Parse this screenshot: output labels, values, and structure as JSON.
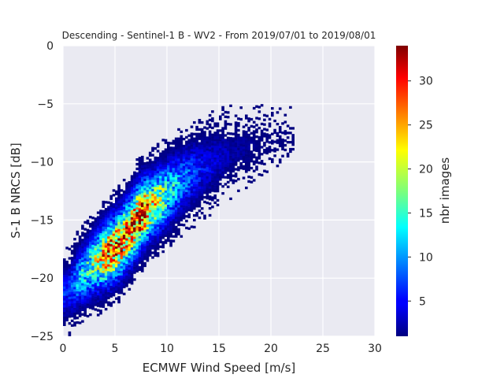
{
  "chart_data": {
    "type": "heatmap",
    "title": "Descending - Sentinel-1 B - WV2 - From 2019/07/01 to 2019/08/01",
    "xlabel": "ECMWF Wind Speed [m/s]",
    "ylabel": "S-1 B NRCS [dB]",
    "xlim": [
      0,
      30
    ],
    "ylim": [
      -25,
      0
    ],
    "x_ticks": [
      "0",
      "5",
      "10",
      "15",
      "20",
      "25",
      "30"
    ],
    "y_ticks": [
      "0",
      "−5",
      "−10",
      "−15",
      "−20",
      "−25"
    ],
    "grid": true,
    "colorbar": {
      "label": "nbr images",
      "range": [
        1,
        34
      ],
      "ticks": [
        "5",
        "10",
        "15",
        "20",
        "25",
        "30"
      ],
      "colormap": "jet"
    },
    "density_ridge": [
      {
        "x": 0.5,
        "y": -21.2,
        "spread": 1.3,
        "peak": 6
      },
      {
        "x": 1.5,
        "y": -20.0,
        "spread": 1.4,
        "peak": 11
      },
      {
        "x": 2.5,
        "y": -19.2,
        "spread": 1.5,
        "peak": 15
      },
      {
        "x": 3.5,
        "y": -18.4,
        "spread": 1.6,
        "peak": 20
      },
      {
        "x": 4.5,
        "y": -17.7,
        "spread": 1.6,
        "peak": 28
      },
      {
        "x": 5.5,
        "y": -17.0,
        "spread": 1.7,
        "peak": 27
      },
      {
        "x": 6.5,
        "y": -15.8,
        "spread": 1.7,
        "peak": 25
      },
      {
        "x": 7.5,
        "y": -14.5,
        "spread": 1.7,
        "peak": 30
      },
      {
        "x": 8.5,
        "y": -13.8,
        "spread": 1.6,
        "peak": 22
      },
      {
        "x": 9.5,
        "y": -13.1,
        "spread": 1.6,
        "peak": 18
      },
      {
        "x": 10.5,
        "y": -12.4,
        "spread": 1.6,
        "peak": 13
      },
      {
        "x": 11.5,
        "y": -11.6,
        "spread": 1.6,
        "peak": 9
      },
      {
        "x": 12.5,
        "y": -11.0,
        "spread": 1.6,
        "peak": 7
      },
      {
        "x": 13.5,
        "y": -10.5,
        "spread": 1.5,
        "peak": 5
      },
      {
        "x": 14.5,
        "y": -10.0,
        "spread": 1.5,
        "peak": 4
      },
      {
        "x": 15.5,
        "y": -9.5,
        "spread": 1.4,
        "peak": 3
      },
      {
        "x": 16.5,
        "y": -9.1,
        "spread": 1.3,
        "peak": 2
      },
      {
        "x": 17.5,
        "y": -8.8,
        "spread": 1.2,
        "peak": 2
      },
      {
        "x": 18.5,
        "y": -8.5,
        "spread": 1.1,
        "peak": 1
      },
      {
        "x": 19.5,
        "y": -8.2,
        "spread": 1.0,
        "peak": 1
      },
      {
        "x": 20.5,
        "y": -8.0,
        "spread": 0.9,
        "peak": 1
      },
      {
        "x": 21.5,
        "y": -7.8,
        "spread": 0.8,
        "peak": 1
      }
    ]
  }
}
